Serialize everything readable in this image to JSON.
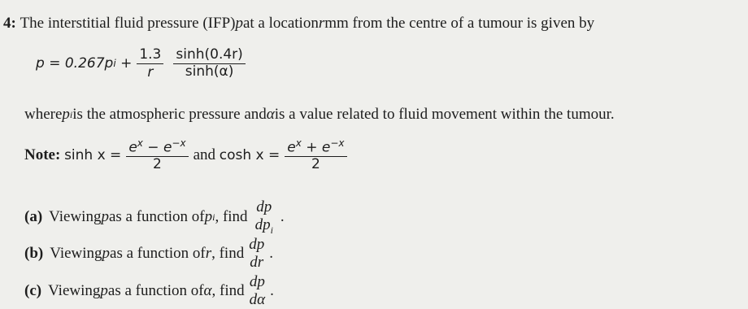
{
  "question": {
    "number": "4:",
    "intro": [
      "The interstitial fluid pressure (IFP) ",
      "p",
      " at a location ",
      "r",
      " mm from the centre of a tumour is given by"
    ]
  },
  "formula": {
    "lhs": "p",
    "eq": "=",
    "coef": "0.267",
    "pi": "p",
    "sub": "i",
    "plus": "+",
    "frac1": {
      "num": "1.3",
      "den": "r"
    },
    "frac2": {
      "num": "sinh(0.4r)",
      "den": "sinh(α)"
    }
  },
  "where": [
    "where ",
    "p",
    "i",
    " is the atmospheric pressure and ",
    "α",
    " is a value related to fluid movement within the tumour."
  ],
  "note": {
    "label": "Note:",
    "and": "and",
    "sinh": {
      "lhs": "sinh x =",
      "num": [
        "e",
        "x",
        " − e",
        "−x"
      ],
      "den": "2"
    },
    "cosh": {
      "lhs": "cosh x =",
      "num": [
        "e",
        "x",
        " + e",
        "−x"
      ],
      "den": "2"
    }
  },
  "parts": [
    {
      "label": "(a)",
      "text": [
        "Viewing ",
        "p",
        " as a function of ",
        "p",
        "i",
        ", find"
      ],
      "num": "dp",
      "den": [
        "dp",
        "i"
      ],
      "end": "."
    },
    {
      "label": "(b)",
      "text": [
        "Viewing ",
        "p",
        " as a function of ",
        "r",
        ", find"
      ],
      "num": "dp",
      "den": "dr",
      "end": "."
    },
    {
      "label": "(c)",
      "text": [
        "Viewing ",
        "p",
        " as a function of ",
        "α",
        ", find"
      ],
      "num": "dp",
      "den": "dα",
      "end": "."
    }
  ]
}
